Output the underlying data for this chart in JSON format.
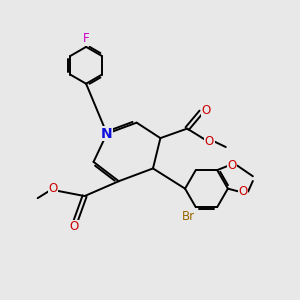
{
  "bg_color": "#e8e8e8",
  "bond_color": "#000000",
  "N_color": "#1010dd",
  "O_color": "#cc0000",
  "F_color": "#cc00cc",
  "Br_color": "#996600",
  "lw": 1.4,
  "fig_size": [
    3.0,
    3.0
  ],
  "dpi": 100,
  "xlim": [
    0,
    10
  ],
  "ylim": [
    0,
    10
  ]
}
